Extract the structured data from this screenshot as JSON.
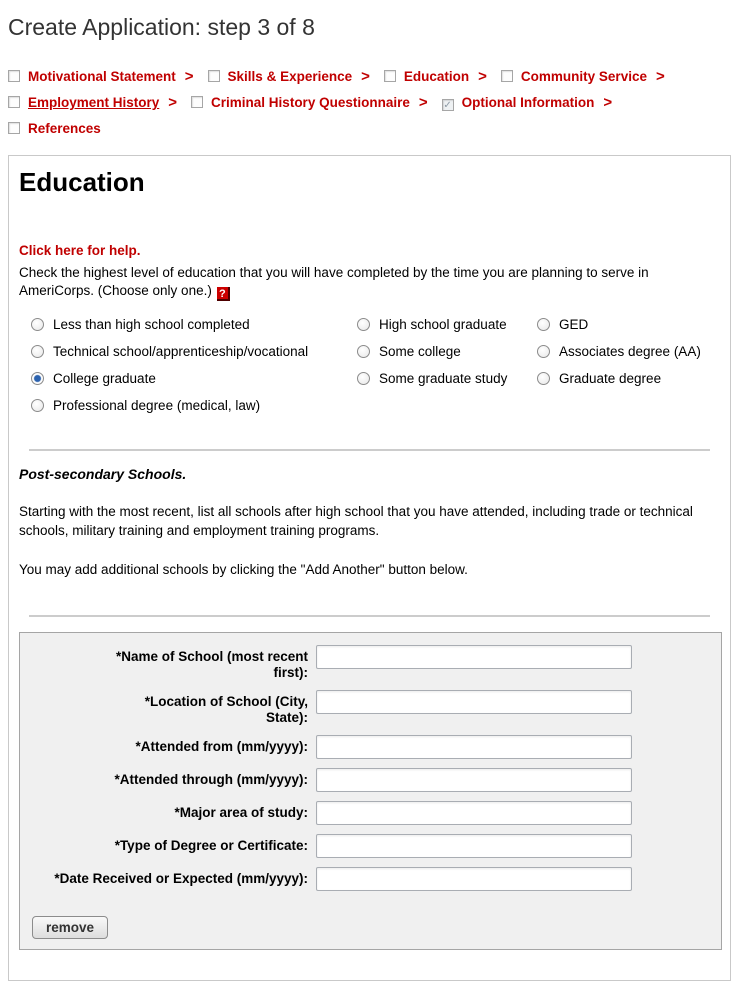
{
  "page": {
    "title": "Create Application: step 3 of 8"
  },
  "breadcrumb": {
    "separator": ">",
    "items": [
      {
        "label": "Motivational Statement",
        "checked": false
      },
      {
        "label": "Skills & Experience",
        "checked": false
      },
      {
        "label": "Education",
        "checked": false
      },
      {
        "label": "Community Service",
        "checked": false
      },
      {
        "label": "Employment History",
        "checked": false,
        "underline": true
      },
      {
        "label": "Criminal History Questionnaire",
        "checked": false
      },
      {
        "label": "Optional Information",
        "checked": true
      },
      {
        "label": "References",
        "checked": false
      }
    ]
  },
  "education": {
    "heading": "Education",
    "help_link": "Click here for help.",
    "instructions": "Check the highest level of education that you will have completed by the time you are planning to serve in AmeriCorps. (Choose only one.)",
    "help_icon": "?",
    "options": [
      {
        "label": "Less than high school completed",
        "checked": null
      },
      {
        "label": "High school graduate",
        "checked": null
      },
      {
        "label": "GED",
        "checked": null
      },
      {
        "label": "Technical school/apprenticeship/vocational",
        "checked": null
      },
      {
        "label": "Some college",
        "checked": null
      },
      {
        "label": "Associates degree (AA)",
        "checked": null
      },
      {
        "label": "College graduate",
        "checked": "checked"
      },
      {
        "label": "Some graduate study",
        "checked": null
      },
      {
        "label": "Graduate degree",
        "checked": null
      },
      {
        "label": "Professional degree (medical, law)",
        "checked": null
      }
    ]
  },
  "post_secondary": {
    "heading": "Post-secondary Schools.",
    "paragraph1": "Starting with the most recent, list all schools after high school that you have attended, including trade or technical schools, military training and employment training programs.",
    "paragraph2": "You may add additional schools by clicking the \"Add Another\" button below.",
    "fields": [
      {
        "label": "*Name of School (most recent\nfirst):",
        "value": ""
      },
      {
        "label": "*Location of School (City,\nState):",
        "value": ""
      },
      {
        "label": "*Attended from (mm/yyyy):",
        "value": ""
      },
      {
        "label": "*Attended through (mm/yyyy):",
        "value": ""
      },
      {
        "label": "*Major area of study:",
        "value": ""
      },
      {
        "label": "*Type of Degree or Certificate:",
        "value": ""
      },
      {
        "label": "*Date Received or Expected (mm/yyyy):",
        "value": ""
      }
    ],
    "remove_button": "remove"
  },
  "colors": {
    "accent_red": "#c00000",
    "title_gray": "#333333",
    "panel_bg": "#f0f0f0",
    "selected_radio_blue": "#2c62ae"
  }
}
